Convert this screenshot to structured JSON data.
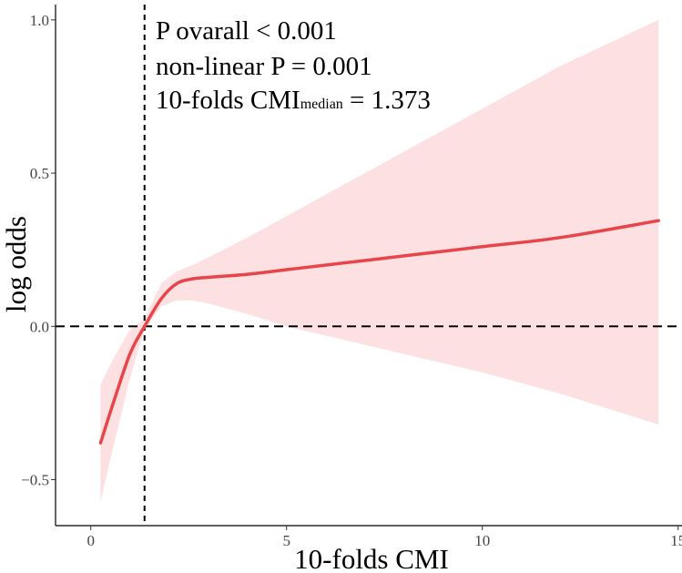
{
  "chart_data": {
    "type": "line",
    "xlabel": "10-folds CMI",
    "ylabel": "log odds",
    "xlim": [
      -0.9,
      15.1
    ],
    "ylim": [
      -0.65,
      1.05
    ],
    "x_ticks": [
      0,
      5,
      10,
      15
    ],
    "x_tick_labels": [
      "0",
      "5",
      "10",
      "15"
    ],
    "y_ticks": [
      -0.5,
      0.0,
      0.5,
      1.0
    ],
    "y_tick_labels": [
      "−0.5",
      "0.0",
      "0.5",
      "1.0"
    ],
    "grid": false,
    "reference_lines": {
      "vertical_x": 1.373,
      "horizontal_y": 0.0
    },
    "series": [
      {
        "name": "log odds",
        "color": "#e8454a",
        "x": [
          0.25,
          0.6,
          1.0,
          1.373,
          1.8,
          2.2,
          2.6,
          3.0,
          4.0,
          5.0,
          6.0,
          8.0,
          10.0,
          12.0,
          14.5
        ],
        "values": [
          -0.38,
          -0.24,
          -0.09,
          0.0,
          0.09,
          0.14,
          0.155,
          0.16,
          0.17,
          0.185,
          0.2,
          0.23,
          0.26,
          0.29,
          0.345
        ],
        "ci_lower": [
          -0.57,
          -0.38,
          -0.17,
          -0.01,
          0.065,
          0.085,
          0.085,
          0.075,
          0.04,
          0.0,
          -0.03,
          -0.09,
          -0.15,
          -0.22,
          -0.32
        ],
        "ci_upper": [
          -0.19,
          -0.1,
          -0.01,
          0.025,
          0.14,
          0.18,
          0.2,
          0.225,
          0.29,
          0.36,
          0.43,
          0.57,
          0.71,
          0.85,
          1.0
        ],
        "band_color": "#fde0e1"
      }
    ],
    "annotations": [
      {
        "text": "P ovarall < 0.001"
      },
      {
        "text": "non-linear P = 0.001"
      },
      {
        "text_main": "10-folds CMI",
        "text_sub": "median",
        "text_tail": " = 1.373"
      }
    ]
  }
}
